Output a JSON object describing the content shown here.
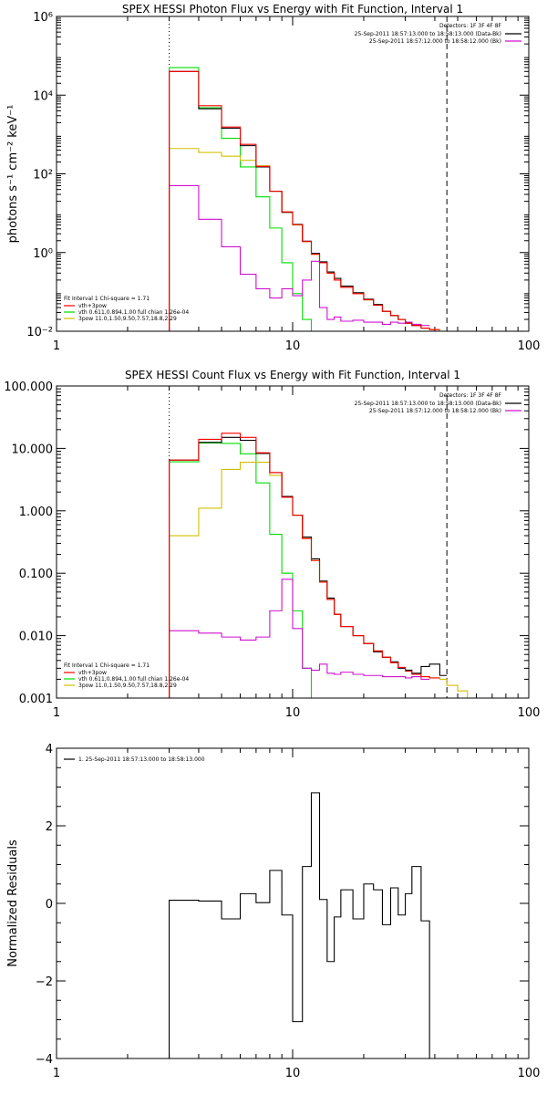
{
  "chart_data": [
    {
      "type": "line",
      "title": "SPEX HESSI Photon Flux vs Energy with Fit Function, Interval 1",
      "ylabel": "photons s⁻¹ cm⁻² keV⁻¹",
      "xlabel": "",
      "xscale": "log",
      "yscale": "log",
      "xlim": [
        1,
        100
      ],
      "ylim": [
        0.01,
        1000000
      ],
      "x_ticks": [
        1,
        10,
        100
      ],
      "x_tick_labels": [
        "1",
        "10",
        "100"
      ],
      "y_ticks": [
        0.01,
        1,
        100,
        10000,
        1000000
      ],
      "y_tick_labels": [
        "10⁻²",
        "10⁰",
        "10²",
        "10⁴",
        "10⁶"
      ],
      "vlines": [
        {
          "x": 3,
          "style": "dotted"
        },
        {
          "x": 45,
          "style": "dashed"
        }
      ],
      "legend_top": {
        "position": "top-right",
        "header": "Detectors: 1F 3F 4F 8F",
        "entries": [
          {
            "label": "25-Sep-2011 18:57:13.000 to 18:58:13.000 (Data-Bk)",
            "color": "#000000"
          },
          {
            "label": "25-Sep-2011 18:57:12.000 to 18:58:12.000 (Bk)",
            "color": "#d010d0"
          }
        ]
      },
      "legend_bottom": {
        "position": "bottom-left",
        "header": "Fit Interval 1    Chi-square = 1.71",
        "entries": [
          {
            "label": "vth+3pow",
            "color": "#ff0000"
          },
          {
            "label": "vth 0.611,0.894,1.00  full chian 1.26e-04",
            "color": "#00dd00"
          },
          {
            "label": "3pow 11.0,1.50,9.50,7.57,18.8,2.29",
            "color": "#d0c000"
          }
        ]
      },
      "x_edges": [
        3,
        4,
        5,
        6,
        7,
        8,
        9,
        10,
        11,
        12,
        13,
        14,
        15,
        16,
        18,
        20,
        22,
        24,
        26,
        28,
        30,
        32,
        35,
        38,
        42,
        45,
        50,
        55,
        60
      ],
      "series": [
        {
          "name": "data",
          "color": "#000000",
          "values": [
            40000,
            4500,
            1450,
            520,
            150,
            36,
            10.5,
            5.2,
            1.95,
            0.95,
            0.58,
            0.32,
            0.22,
            0.14,
            0.095,
            0.065,
            0.048,
            0.032,
            0.025,
            0.02,
            0.016,
            0.014,
            0.012
          ]
        },
        {
          "name": "bk",
          "color": "#d010d0",
          "values": [
            50,
            7,
            1.4,
            0.28,
            0.12,
            0.07,
            0.12,
            0.08,
            0.2,
            0.6,
            0.04,
            0.02,
            0.023,
            0.018,
            0.019,
            0.017,
            0.017,
            0.015,
            0.017,
            0.016,
            0.017,
            0.015,
            0.014
          ]
        },
        {
          "name": "vth+3pow",
          "color": "#ff0000",
          "values": [
            40000,
            5400,
            1550,
            560,
            155,
            36,
            10.8,
            5.1,
            1.9,
            0.9,
            0.55,
            0.3,
            0.2,
            0.13,
            0.09,
            0.063,
            0.046,
            0.032,
            0.025,
            0.02,
            0.016,
            0.014,
            0.012,
            0.011
          ]
        },
        {
          "name": "vth",
          "color": "#00dd00",
          "values": [
            50000,
            4800,
            800,
            150,
            26,
            4.2,
            0.55,
            0.09,
            0.02,
            0.006
          ]
        },
        {
          "name": "3pow",
          "color": "#d0c000",
          "values": [
            440,
            350,
            280,
            220,
            160,
            36,
            10.5,
            5,
            1.9,
            0.9,
            0.55,
            0.3,
            0.2,
            0.13,
            0.09,
            0.063,
            0.046,
            0.032,
            0.025,
            0.02,
            0.016,
            0.014,
            0.012,
            0.011,
            0.01,
            0.009,
            0.008
          ]
        }
      ]
    },
    {
      "type": "line",
      "title": "SPEX HESSI Count Flux vs Energy with Fit Function, Interval 1",
      "ylabel": "",
      "xlabel": "",
      "xscale": "log",
      "yscale": "log",
      "xlim": [
        1,
        100
      ],
      "ylim": [
        0.001,
        100
      ],
      "x_ticks": [
        1,
        10,
        100
      ],
      "x_tick_labels": [
        "1",
        "10",
        "100"
      ],
      "y_ticks": [
        0.001,
        0.01,
        0.1,
        1,
        10,
        100
      ],
      "y_tick_labels": [
        "0.001",
        "0.010",
        "0.100",
        "1.000",
        "10.000",
        "100.000"
      ],
      "vlines": [
        {
          "x": 3,
          "style": "dotted"
        },
        {
          "x": 45,
          "style": "dashed"
        }
      ],
      "legend_top": {
        "position": "top-right",
        "header": "Detectors: 1F 3F 4F 8F",
        "entries": [
          {
            "label": "25-Sep-2011 18:57:13.000 to 18:58:13.000 (Data-Bk)",
            "color": "#000000"
          },
          {
            "label": "25-Sep-2011 18:57:12.000 to 18:58:12.000 (Bk)",
            "color": "#d010d0"
          }
        ]
      },
      "legend_bottom": {
        "position": "bottom-left",
        "header": "Fit Interval 1    Chi-square = 1.71",
        "entries": [
          {
            "label": "vth+3pow",
            "color": "#ff0000"
          },
          {
            "label": "vth 0.611,0.894,1.00  full chian 1.26e-04",
            "color": "#00dd00"
          },
          {
            "label": "3pow 11.0,1.50,9.50,7.57,18.8,2.29",
            "color": "#d0c000"
          }
        ]
      },
      "x_edges": [
        3,
        4,
        5,
        6,
        7,
        8,
        9,
        10,
        11,
        12,
        13,
        14,
        15,
        16,
        18,
        20,
        22,
        24,
        26,
        28,
        30,
        32,
        35,
        38,
        42,
        45,
        50,
        55,
        60,
        66
      ],
      "series": [
        {
          "name": "data",
          "color": "#000000",
          "values": [
            6.5,
            12.5,
            15,
            13.5,
            8.3,
            4.1,
            1.7,
            0.85,
            0.38,
            0.17,
            0.075,
            0.04,
            0.022,
            0.014,
            0.01,
            0.0075,
            0.0055,
            0.0045,
            0.0038,
            0.003,
            0.0028,
            0.0025,
            0.0032,
            0.0035,
            0.0023
          ]
        },
        {
          "name": "bk",
          "color": "#d010d0",
          "values": [
            0.012,
            0.011,
            0.0095,
            0.0085,
            0.0095,
            0.025,
            0.08,
            0.013,
            0.003,
            0.0028,
            0.0035,
            0.0025,
            0.0024,
            0.0026,
            0.0024,
            0.0023,
            0.0023,
            0.0022,
            0.0022,
            0.0022,
            0.0021,
            0.0022,
            0.002
          ]
        },
        {
          "name": "vth+3pow",
          "color": "#ff0000",
          "values": [
            6.5,
            14,
            17.5,
            15,
            8.5,
            4.1,
            1.65,
            0.85,
            0.36,
            0.16,
            0.072,
            0.038,
            0.022,
            0.014,
            0.01,
            0.0075,
            0.0057,
            0.0045,
            0.0037,
            0.0031,
            0.0027,
            0.0024,
            0.0022,
            0.0021
          ]
        },
        {
          "name": "vth",
          "color": "#00dd00",
          "values": [
            6.1,
            12.2,
            12,
            8.2,
            2.8,
            0.42,
            0.1,
            0.025,
            0.003,
            0.0008
          ]
        },
        {
          "name": "3pow",
          "color": "#d0c000",
          "values": [
            0.4,
            1.1,
            4.6,
            6,
            6,
            3.7,
            1.65,
            0.85,
            0.36,
            0.16,
            0.072,
            0.038,
            0.022,
            0.014,
            0.01,
            0.0075,
            0.0057,
            0.0045,
            0.0037,
            0.0031,
            0.0027,
            0.0024,
            0.0022,
            0.0021,
            0.002,
            0.0016,
            0.0013,
            0.001,
            0.0008
          ]
        }
      ]
    },
    {
      "type": "line",
      "title": "",
      "ylabel": "Normalized Residuals",
      "xlabel": "",
      "xscale": "log",
      "yscale": "linear",
      "xlim": [
        1,
        100
      ],
      "ylim": [
        -4,
        4
      ],
      "x_ticks": [
        1,
        10,
        100
      ],
      "x_tick_labels": [
        "1",
        "10",
        "100"
      ],
      "y_ticks": [
        -4,
        -2,
        0,
        2,
        4
      ],
      "y_tick_labels": [
        "−4",
        "−2",
        "0",
        "2",
        "4"
      ],
      "legend_top": {
        "position": "top-left",
        "header": "",
        "entries": [
          {
            "label": "1. 25-Sep-2011 18:57:13.000 to 18:58:13.000",
            "color": "#000000"
          }
        ]
      },
      "x_edges": [
        3,
        4,
        5,
        6,
        7,
        8,
        9,
        10,
        11,
        12,
        13,
        14,
        15,
        16,
        18,
        20,
        22,
        24,
        26,
        28,
        30,
        32,
        35,
        38,
        42,
        45
      ],
      "series": [
        {
          "name": "residuals",
          "color": "#000000",
          "values": [
            0.08,
            0.06,
            -0.4,
            0.25,
            0.02,
            0.85,
            -0.3,
            -3.05,
            0.95,
            2.85,
            0.1,
            -1.5,
            -0.35,
            0.35,
            -0.4,
            0.5,
            0.35,
            -0.55,
            0.4,
            -0.3,
            0.25,
            0.95,
            -0.45
          ]
        }
      ]
    }
  ]
}
